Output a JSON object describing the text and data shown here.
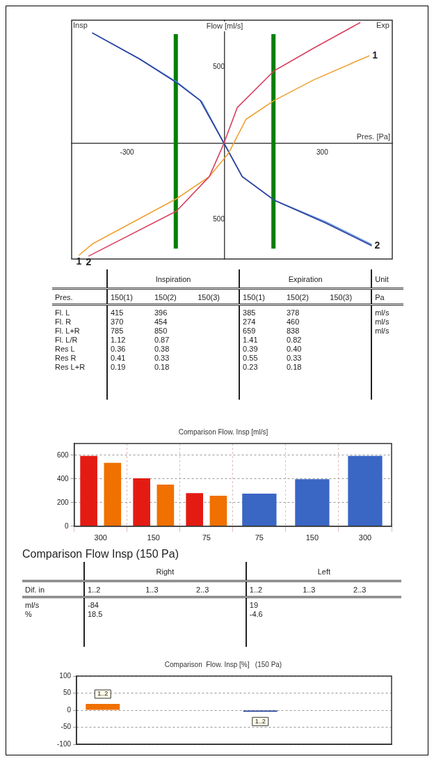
{
  "chart_data": [
    {
      "type": "line",
      "xlabel": "Pres. [Pa]",
      "ylabel": "Flow [ml/s]",
      "xlim": [
        -470,
        515
      ],
      "ylim": [
        -760,
        810
      ],
      "xticks": [
        -300,
        300
      ],
      "yticks": [
        {
          "value": -500,
          "label": "500"
        },
        500
      ],
      "ref_lines": [
        {
          "axis": "x",
          "value": -150,
          "color": "#008000"
        },
        {
          "axis": "x",
          "value": 150,
          "color": "#008000"
        }
      ],
      "annotations": [
        "Insp",
        "Exp",
        {
          "text": "1",
          "x": 445,
          "y": 577
        },
        {
          "text": "2",
          "x": 452,
          "y": -673
        },
        {
          "text": "1",
          "x": -448,
          "y": -736
        },
        {
          "text": "2",
          "x": -418,
          "y": -741
        }
      ],
      "series": [
        {
          "color": "#d94060",
          "x": [
            -418,
            -148,
            -47,
            -4,
            39,
            152,
            274,
            417
          ],
          "values": [
            -741,
            -445,
            -218,
            -9,
            236,
            477,
            627,
            795
          ]
        },
        {
          "color": "#f0a030",
          "x": [
            -448,
            -405,
            -148,
            -47,
            11,
            66,
            152,
            274,
            445
          ],
          "values": [
            -736,
            -659,
            -364,
            -218,
            -68,
            159,
            282,
            418,
            577
          ]
        },
        {
          "color": "#2a3f9e",
          "x": [
            -407,
            -261,
            -148,
            -75,
            -4,
            54,
            152,
            310,
            452
          ],
          "values": [
            727,
            555,
            400,
            282,
            9,
            -218,
            -373,
            -523,
            -673
          ]
        },
        {
          "color": "#5b8fd8",
          "x": [
            -407,
            -261,
            -148,
            -70,
            -4,
            54,
            152,
            310,
            452
          ],
          "values": [
            727,
            555,
            405,
            275,
            9,
            -218,
            -373,
            -515,
            -665
          ]
        }
      ]
    },
    {
      "type": "other",
      "annotations": [
        "Inspiration",
        "Expiration",
        "Unit"
      ],
      "categories": [
        "Pres.",
        "150(1)",
        "150(2)",
        "150(3)",
        "150(1)",
        "150(2)",
        "150(3)",
        "Pa"
      ],
      "y_categories": [
        "Fl. L",
        "Fl. R",
        "Fl. L+R",
        "Fl. L/R",
        "Res L",
        "Res R",
        "Res L+R"
      ],
      "cell_labels": [
        [
          "415",
          "396",
          null,
          "385",
          "378",
          null,
          "ml/s"
        ],
        [
          "370",
          "454",
          null,
          "274",
          "460",
          null,
          "ml/s"
        ],
        [
          "785",
          "850",
          null,
          "659",
          "838",
          null,
          "ml/s"
        ],
        [
          "1.12",
          "0.87",
          null,
          "1.41",
          "0.82",
          null,
          null
        ],
        [
          "0.36",
          "0.38",
          null,
          "0.39",
          "0.40",
          null,
          null
        ],
        [
          "0.41",
          "0.33",
          null,
          "0.55",
          "0.33",
          null,
          null
        ],
        [
          "0.19",
          "0.18",
          null,
          "0.23",
          "0.18",
          null,
          null
        ]
      ]
    },
    {
      "type": "bar",
      "title": "Comparison Flow. Insp [ml/s]",
      "categories": [
        "300",
        "150",
        "75",
        "75",
        "150",
        "300"
      ],
      "ylim": [
        0,
        700
      ],
      "yticks": [
        0,
        200,
        400,
        600
      ],
      "grid": true,
      "series": [
        {
          "color": "#e41b13",
          "values": [
            595,
            405,
            280,
            null,
            null,
            null
          ]
        },
        {
          "color": "#f07000",
          "values": [
            537,
            352,
            258,
            null,
            null,
            null
          ]
        },
        {
          "color": "#3a66c4",
          "values": [
            null,
            null,
            null,
            276,
            398,
            595
          ]
        }
      ]
    },
    {
      "type": "other",
      "title": "Comparison  Flow Insp  (150 Pa)",
      "annotations": [
        "Right",
        "Left"
      ],
      "categories": [
        "Dif. in",
        "1..2",
        "1..3",
        "2..3",
        "1..2",
        "1..3",
        "2..3"
      ],
      "y_categories": [
        "ml/s",
        "%"
      ],
      "cell_labels": [
        [
          "-84",
          null,
          null,
          "19",
          null,
          null
        ],
        [
          "18.5",
          null,
          null,
          "-4.6",
          null,
          null
        ]
      ]
    },
    {
      "type": "bar",
      "title": "Comparison  Flow. Insp [%]   (150 Pa)",
      "categories": [
        null,
        null,
        null,
        null,
        null,
        null
      ],
      "ylim": [
        -100,
        100
      ],
      "yticks": [
        -100,
        -50,
        0,
        50,
        100
      ],
      "grid": "y",
      "tick_labels": "y",
      "series": [
        {
          "name": "1..2",
          "color": "#f07000",
          "values": [
            18.5,
            null,
            null,
            null,
            null,
            null
          ]
        },
        {
          "name": "1..2",
          "color": "#23409a",
          "values": [
            null,
            null,
            null,
            -4.6,
            null,
            null
          ]
        }
      ]
    }
  ]
}
